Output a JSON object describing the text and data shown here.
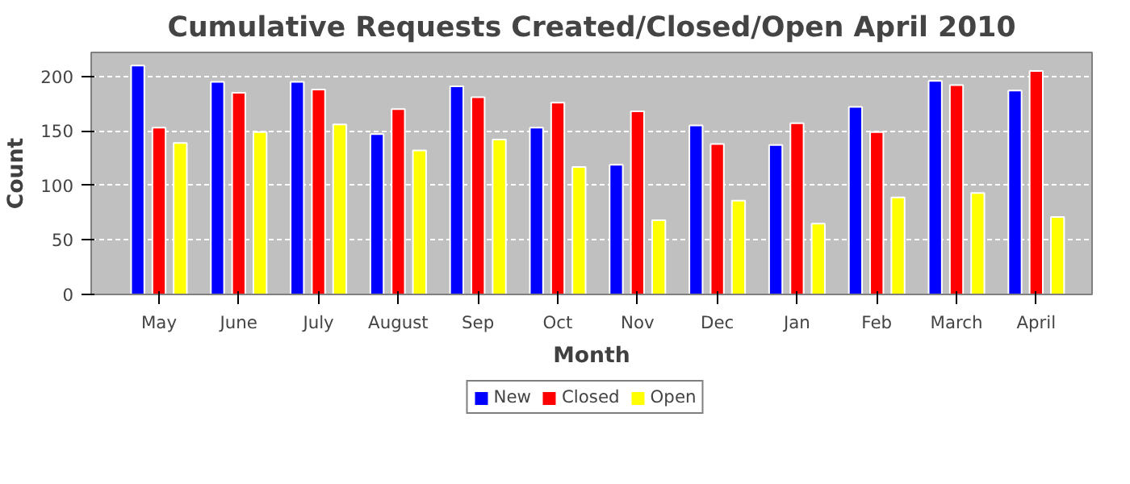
{
  "chart_data": {
    "type": "bar",
    "title": "Cumulative Requests Created/Closed/Open April 2010",
    "xlabel": "Month",
    "ylabel": "Count",
    "categories": [
      "May",
      "June",
      "July",
      "August",
      "Sep",
      "Oct",
      "Nov",
      "Dec",
      "Jan",
      "Feb",
      "March",
      "April"
    ],
    "series": [
      {
        "name": "New",
        "color": "#0000ff",
        "values": [
          210,
          195,
          195,
          147,
          191,
          153,
          119,
          155,
          137,
          172,
          196,
          187
        ]
      },
      {
        "name": "Closed",
        "color": "#ff0000",
        "values": [
          153,
          185,
          188,
          170,
          181,
          176,
          168,
          138,
          157,
          149,
          192,
          205
        ]
      },
      {
        "name": "Open",
        "color": "#ffff00",
        "values": [
          139,
          149,
          156,
          132,
          142,
          117,
          68,
          86,
          65,
          89,
          93,
          71
        ]
      }
    ],
    "ylim": [
      0,
      222
    ],
    "yticks": [
      0,
      50,
      100,
      150,
      200
    ],
    "grid": "y",
    "legend": "bottom"
  }
}
